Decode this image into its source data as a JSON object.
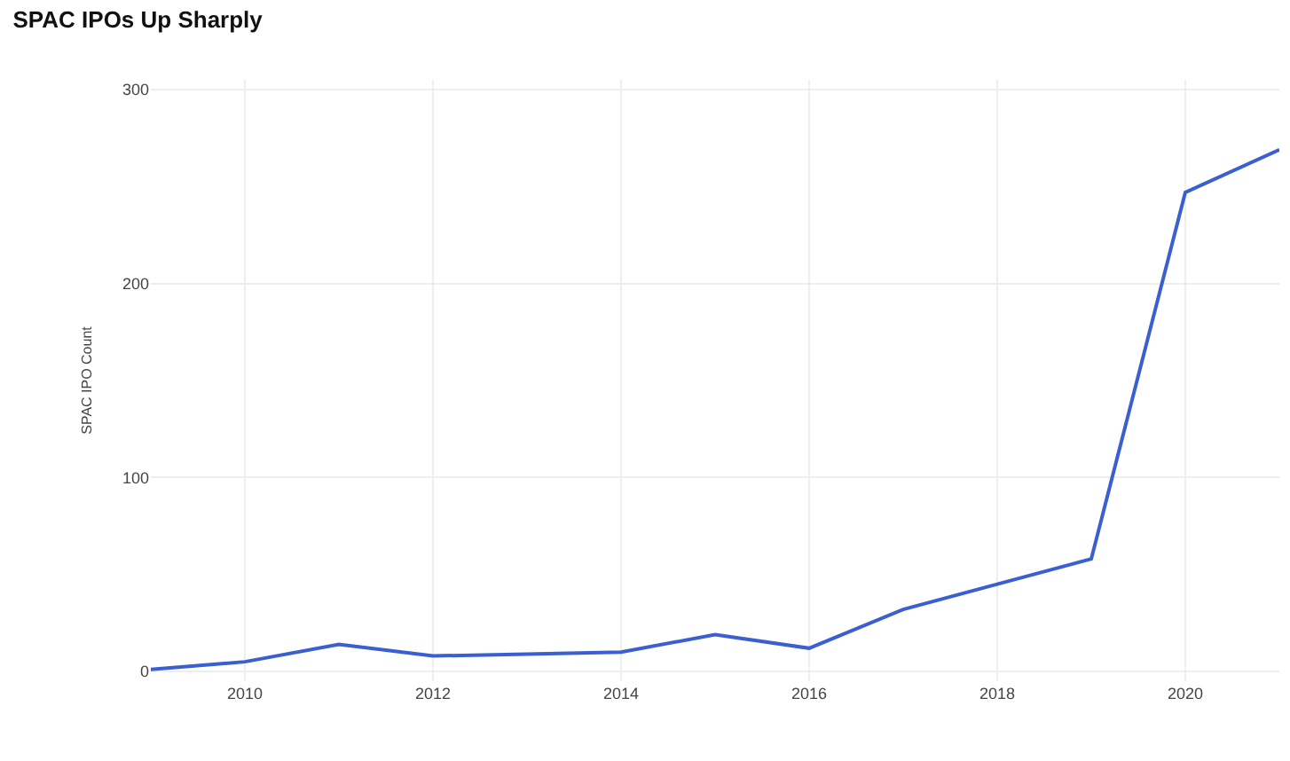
{
  "chart_data": {
    "type": "line",
    "title": "SPAC IPOs Up Sharply",
    "ylabel": "SPAC IPO Count",
    "x": [
      2009,
      2010,
      2011,
      2012,
      2013,
      2014,
      2015,
      2016,
      2017,
      2018,
      2019,
      2020,
      2021
    ],
    "series": [
      {
        "color": "#3a5fd0",
        "values": [
          1,
          5,
          14,
          8,
          9,
          10,
          19,
          12,
          32,
          45,
          58,
          247,
          269
        ]
      }
    ],
    "xlim": [
      2009,
      2021
    ],
    "xticks": [
      2010,
      2012,
      2014,
      2016,
      2018,
      2020
    ],
    "ylim": [
      -5,
      305
    ],
    "yticks": [
      0,
      100,
      200,
      300
    ],
    "grid": true,
    "marker": "none",
    "line_style": "solid"
  }
}
